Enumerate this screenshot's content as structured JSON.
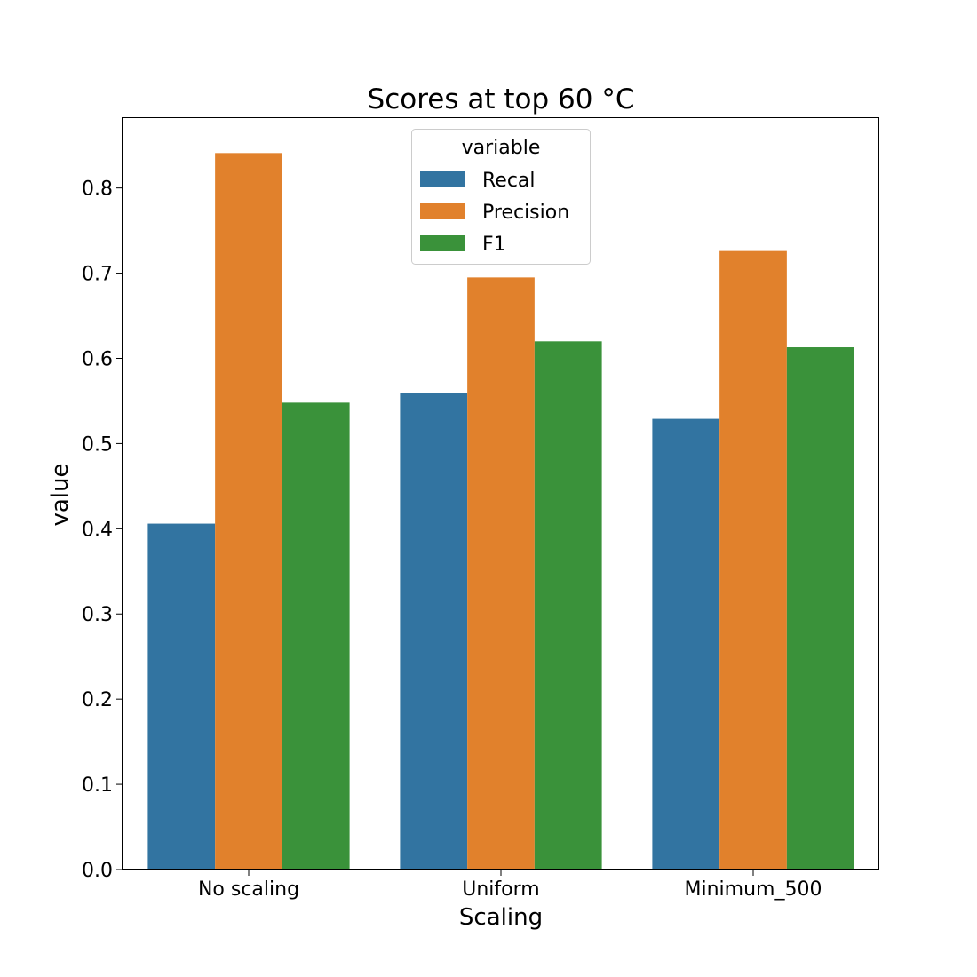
{
  "chart_data": {
    "type": "bar",
    "title": "Scores at top 60 °C",
    "xlabel": "Scaling",
    "ylabel": "value",
    "categories": [
      "No scaling",
      "Uniform",
      "Minimum_500"
    ],
    "series": [
      {
        "name": "Recal",
        "color": "#3274a1",
        "values": [
          0.406,
          0.559,
          0.529
        ]
      },
      {
        "name": "Precision",
        "color": "#e1812c",
        "values": [
          0.841,
          0.695,
          0.726
        ]
      },
      {
        "name": "F1",
        "color": "#3a923a",
        "values": [
          0.548,
          0.62,
          0.613
        ]
      }
    ],
    "ylim": [
      0,
      0.882
    ],
    "yticks": [
      "0.0",
      "0.1",
      "0.2",
      "0.3",
      "0.4",
      "0.5",
      "0.6",
      "0.7",
      "0.8"
    ],
    "legend": {
      "title": "variable",
      "placement": "upper-center"
    },
    "grid": false
  }
}
